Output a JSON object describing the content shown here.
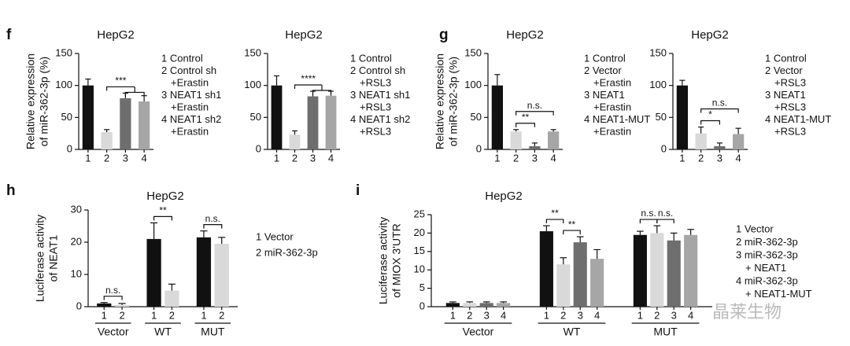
{
  "chart_data": [
    {
      "type": "bar",
      "label": "f",
      "title": "HepG2",
      "ylabel": [
        "Relative expression",
        "of miR-362-3p (%)"
      ],
      "categories": [
        "1",
        "2",
        "3",
        "4"
      ],
      "values": [
        100,
        27,
        80,
        75
      ],
      "errors": [
        10,
        4,
        8,
        9
      ],
      "colors": [
        "#111111",
        "#d9d9d9",
        "#6e6e6e",
        "#a6a6a6"
      ],
      "ylim": [
        0,
        150
      ],
      "yticks": [
        0,
        50,
        100,
        150
      ],
      "legend": [
        "1 Control",
        "2 Control sh",
        "+Erastin",
        "3 NEAT1 sh1",
        "+Erastin",
        "4 NEAT1 sh2",
        "+Erastin"
      ],
      "annotations": [
        {
          "text": "***",
          "bars": [
            "2",
            "3",
            "4"
          ]
        }
      ]
    },
    {
      "type": "bar",
      "title": "HepG2",
      "categories": [
        "1",
        "2",
        "3",
        "4"
      ],
      "values": [
        100,
        23,
        83,
        84
      ],
      "errors": [
        15,
        6,
        8,
        7
      ],
      "colors": [
        "#111111",
        "#d9d9d9",
        "#6e6e6e",
        "#a6a6a6"
      ],
      "ylim": [
        0,
        150
      ],
      "yticks": [
        0,
        50,
        100,
        150
      ],
      "legend": [
        "1 Control",
        "2 Control sh",
        "+RSL3",
        "3 NEAT1 sh1",
        "+RSL3",
        "4 NEAT1 sh2",
        "+RSL3"
      ],
      "annotations": [
        {
          "text": "****",
          "bars": [
            "2",
            "3",
            "4"
          ]
        }
      ]
    },
    {
      "type": "bar",
      "label": "g",
      "title": "HepG2",
      "ylabel": [
        "Relative expression",
        "of miR-362-3p (%)"
      ],
      "categories": [
        "1",
        "2",
        "3",
        "4"
      ],
      "values": [
        100,
        28,
        5,
        28
      ],
      "errors": [
        17,
        3,
        5,
        3
      ],
      "colors": [
        "#111111",
        "#d9d9d9",
        "#6e6e6e",
        "#a6a6a6"
      ],
      "ylim": [
        0,
        150
      ],
      "yticks": [
        0,
        50,
        100,
        150
      ],
      "legend": [
        "1 Control",
        "2 Vector",
        "+Erastin",
        "3 NEAT1",
        "+Erastin",
        "4 NEAT1-MUT",
        "+Erastin"
      ],
      "annotations": [
        {
          "text": "n.s.",
          "bars": [
            "2",
            "4"
          ]
        },
        {
          "text": "**",
          "bars": [
            "2",
            "3"
          ]
        }
      ]
    },
    {
      "type": "bar",
      "title": "HepG2",
      "categories": [
        "1",
        "2",
        "3",
        "4"
      ],
      "values": [
        100,
        25,
        5,
        24
      ],
      "errors": [
        8,
        10,
        5,
        9
      ],
      "colors": [
        "#111111",
        "#d9d9d9",
        "#6e6e6e",
        "#a6a6a6"
      ],
      "ylim": [
        0,
        150
      ],
      "yticks": [
        0,
        50,
        100,
        150
      ],
      "legend": [
        "1 Control",
        "2 Vector",
        "+RSL3",
        "3 NEAT1",
        "+RSL3",
        "4 NEAT1-MUT",
        "+RSL3"
      ],
      "annotations": [
        {
          "text": "n.s.",
          "bars": [
            "2",
            "4"
          ]
        },
        {
          "text": "*",
          "bars": [
            "2",
            "3"
          ]
        }
      ]
    },
    {
      "type": "grouped_bar",
      "label": "h",
      "title": "HepG2",
      "ylabel": [
        "Luciferase activity",
        "of NEAT1"
      ],
      "categories": [
        "Vector",
        "WT",
        "MUT"
      ],
      "series": [
        {
          "name": "1",
          "color": "#111111",
          "values": [
            1,
            21,
            21.5
          ],
          "errors": [
            0.3,
            5,
            2
          ]
        },
        {
          "name": "2",
          "color": "#d9d9d9",
          "values": [
            0.5,
            5,
            19.5
          ],
          "errors": [
            0.5,
            2,
            2
          ]
        }
      ],
      "ylim": [
        0,
        30
      ],
      "yticks": [
        0,
        10,
        20,
        30
      ],
      "legend": [
        "1 Vector",
        "2 miR-362-3p"
      ],
      "annotations": [
        {
          "text": "n.s.",
          "group": "Vector",
          "bars": [
            "1",
            "2"
          ]
        },
        {
          "text": "**",
          "group": "WT",
          "bars": [
            "1",
            "2"
          ]
        },
        {
          "text": "n.s.",
          "group": "MUT",
          "bars": [
            "1",
            "2"
          ]
        }
      ]
    },
    {
      "type": "grouped_bar",
      "label": "i",
      "title": "HepG2",
      "ylabel": [
        "Luciferase activity",
        "of MIOX 3'UTR"
      ],
      "categories": [
        "Vector",
        "WT",
        "MUT"
      ],
      "series": [
        {
          "name": "1",
          "color": "#111111",
          "values": [
            1,
            20.5,
            19.5
          ],
          "errors": [
            0.3,
            1.5,
            1
          ]
        },
        {
          "name": "2",
          "color": "#d9d9d9",
          "values": [
            1,
            11.5,
            20
          ],
          "errors": [
            0.3,
            1.8,
            2
          ]
        },
        {
          "name": "3",
          "color": "#6e6e6e",
          "values": [
            1,
            17.5,
            18
          ],
          "errors": [
            0.3,
            1.5,
            2
          ]
        },
        {
          "name": "4",
          "color": "#a6a6a6",
          "values": [
            1,
            13,
            19.5
          ],
          "errors": [
            0.3,
            2.5,
            1.5
          ]
        }
      ],
      "ylim": [
        0,
        25
      ],
      "yticks": [
        0,
        5,
        10,
        15,
        20,
        25
      ],
      "legend": [
        "1 Vector",
        "2 miR-362-3p",
        "3 miR-362-3p",
        "+ NEAT1",
        "4 miR-362-3p",
        "+ NEAT1-MUT"
      ],
      "annotations": [
        {
          "text": "**",
          "group": "WT",
          "bars": [
            "1",
            "2"
          ]
        },
        {
          "text": "**",
          "group": "WT",
          "bars": [
            "2",
            "3"
          ]
        },
        {
          "text": "n.s.",
          "group": "MUT",
          "bars": [
            "1",
            "2"
          ]
        },
        {
          "text": "n.s.",
          "group": "MUT",
          "bars": [
            "2",
            "3"
          ]
        }
      ]
    }
  ],
  "watermark": "晶莱生物"
}
